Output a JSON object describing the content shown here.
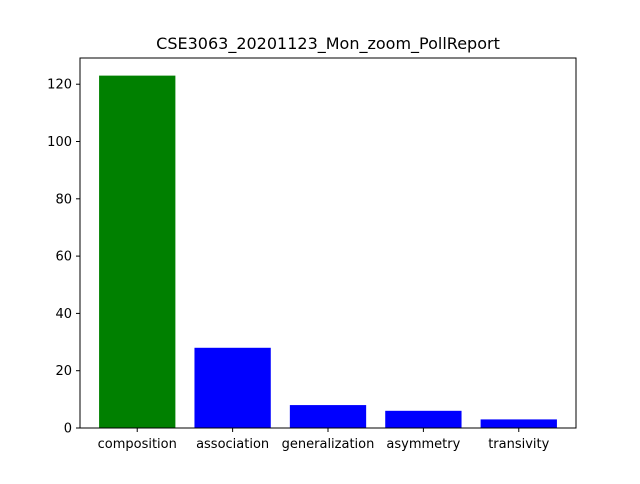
{
  "chart_data": {
    "type": "bar",
    "title": "CSE3063_20201123_Mon_zoom_PollReport",
    "xlabel": "",
    "ylabel": "",
    "categories": [
      "composition",
      "association",
      "generalization",
      "asymmetry",
      "transivity"
    ],
    "values": [
      123,
      28,
      8,
      6,
      3
    ],
    "bar_colors": [
      "#008000",
      "#0000ff",
      "#0000ff",
      "#0000ff",
      "#0000ff"
    ],
    "ylim": [
      0,
      129.15
    ],
    "yticks": [
      0,
      20,
      40,
      60,
      80,
      100,
      120
    ],
    "grid": false,
    "legend": "none"
  }
}
